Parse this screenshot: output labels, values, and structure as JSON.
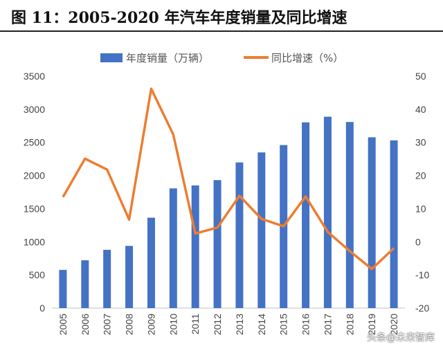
{
  "title": "图 11：2005-2020 年汽车年度销量及同比增速",
  "watermark": "头条@未来智库",
  "chart_data": {
    "type": "bar+line",
    "categories": [
      "2005",
      "2006",
      "2007",
      "2008",
      "2009",
      "2010",
      "2011",
      "2012",
      "2013",
      "2014",
      "2015",
      "2016",
      "2017",
      "2018",
      "2019",
      "2020"
    ],
    "series": [
      {
        "name": "年度销量（万辆）",
        "type": "bar",
        "axis": "left",
        "color": "#4472C4",
        "values": [
          576,
          722,
          879,
          938,
          1364,
          1806,
          1851,
          1931,
          2198,
          2349,
          2460,
          2803,
          2888,
          2808,
          2577,
          2531
        ]
      },
      {
        "name": "同比增速（%）",
        "type": "line",
        "axis": "right",
        "color": "#ED7D31",
        "values": [
          13.5,
          25.1,
          21.8,
          6.7,
          46.2,
          32.4,
          2.5,
          4.3,
          13.9,
          6.9,
          4.7,
          13.7,
          3.0,
          -2.8,
          -8.2,
          -1.9
        ]
      }
    ],
    "left_axis": {
      "ylim": [
        0,
        3500
      ],
      "ticks": [
        "0",
        "500",
        "1000",
        "1500",
        "2000",
        "2500",
        "3000",
        "3500"
      ]
    },
    "right_axis": {
      "ylim": [
        -20,
        50
      ],
      "ticks": [
        "-20",
        "-10",
        "0",
        "10",
        "20",
        "30",
        "40",
        "50"
      ]
    },
    "legend": "top",
    "grid": false
  }
}
